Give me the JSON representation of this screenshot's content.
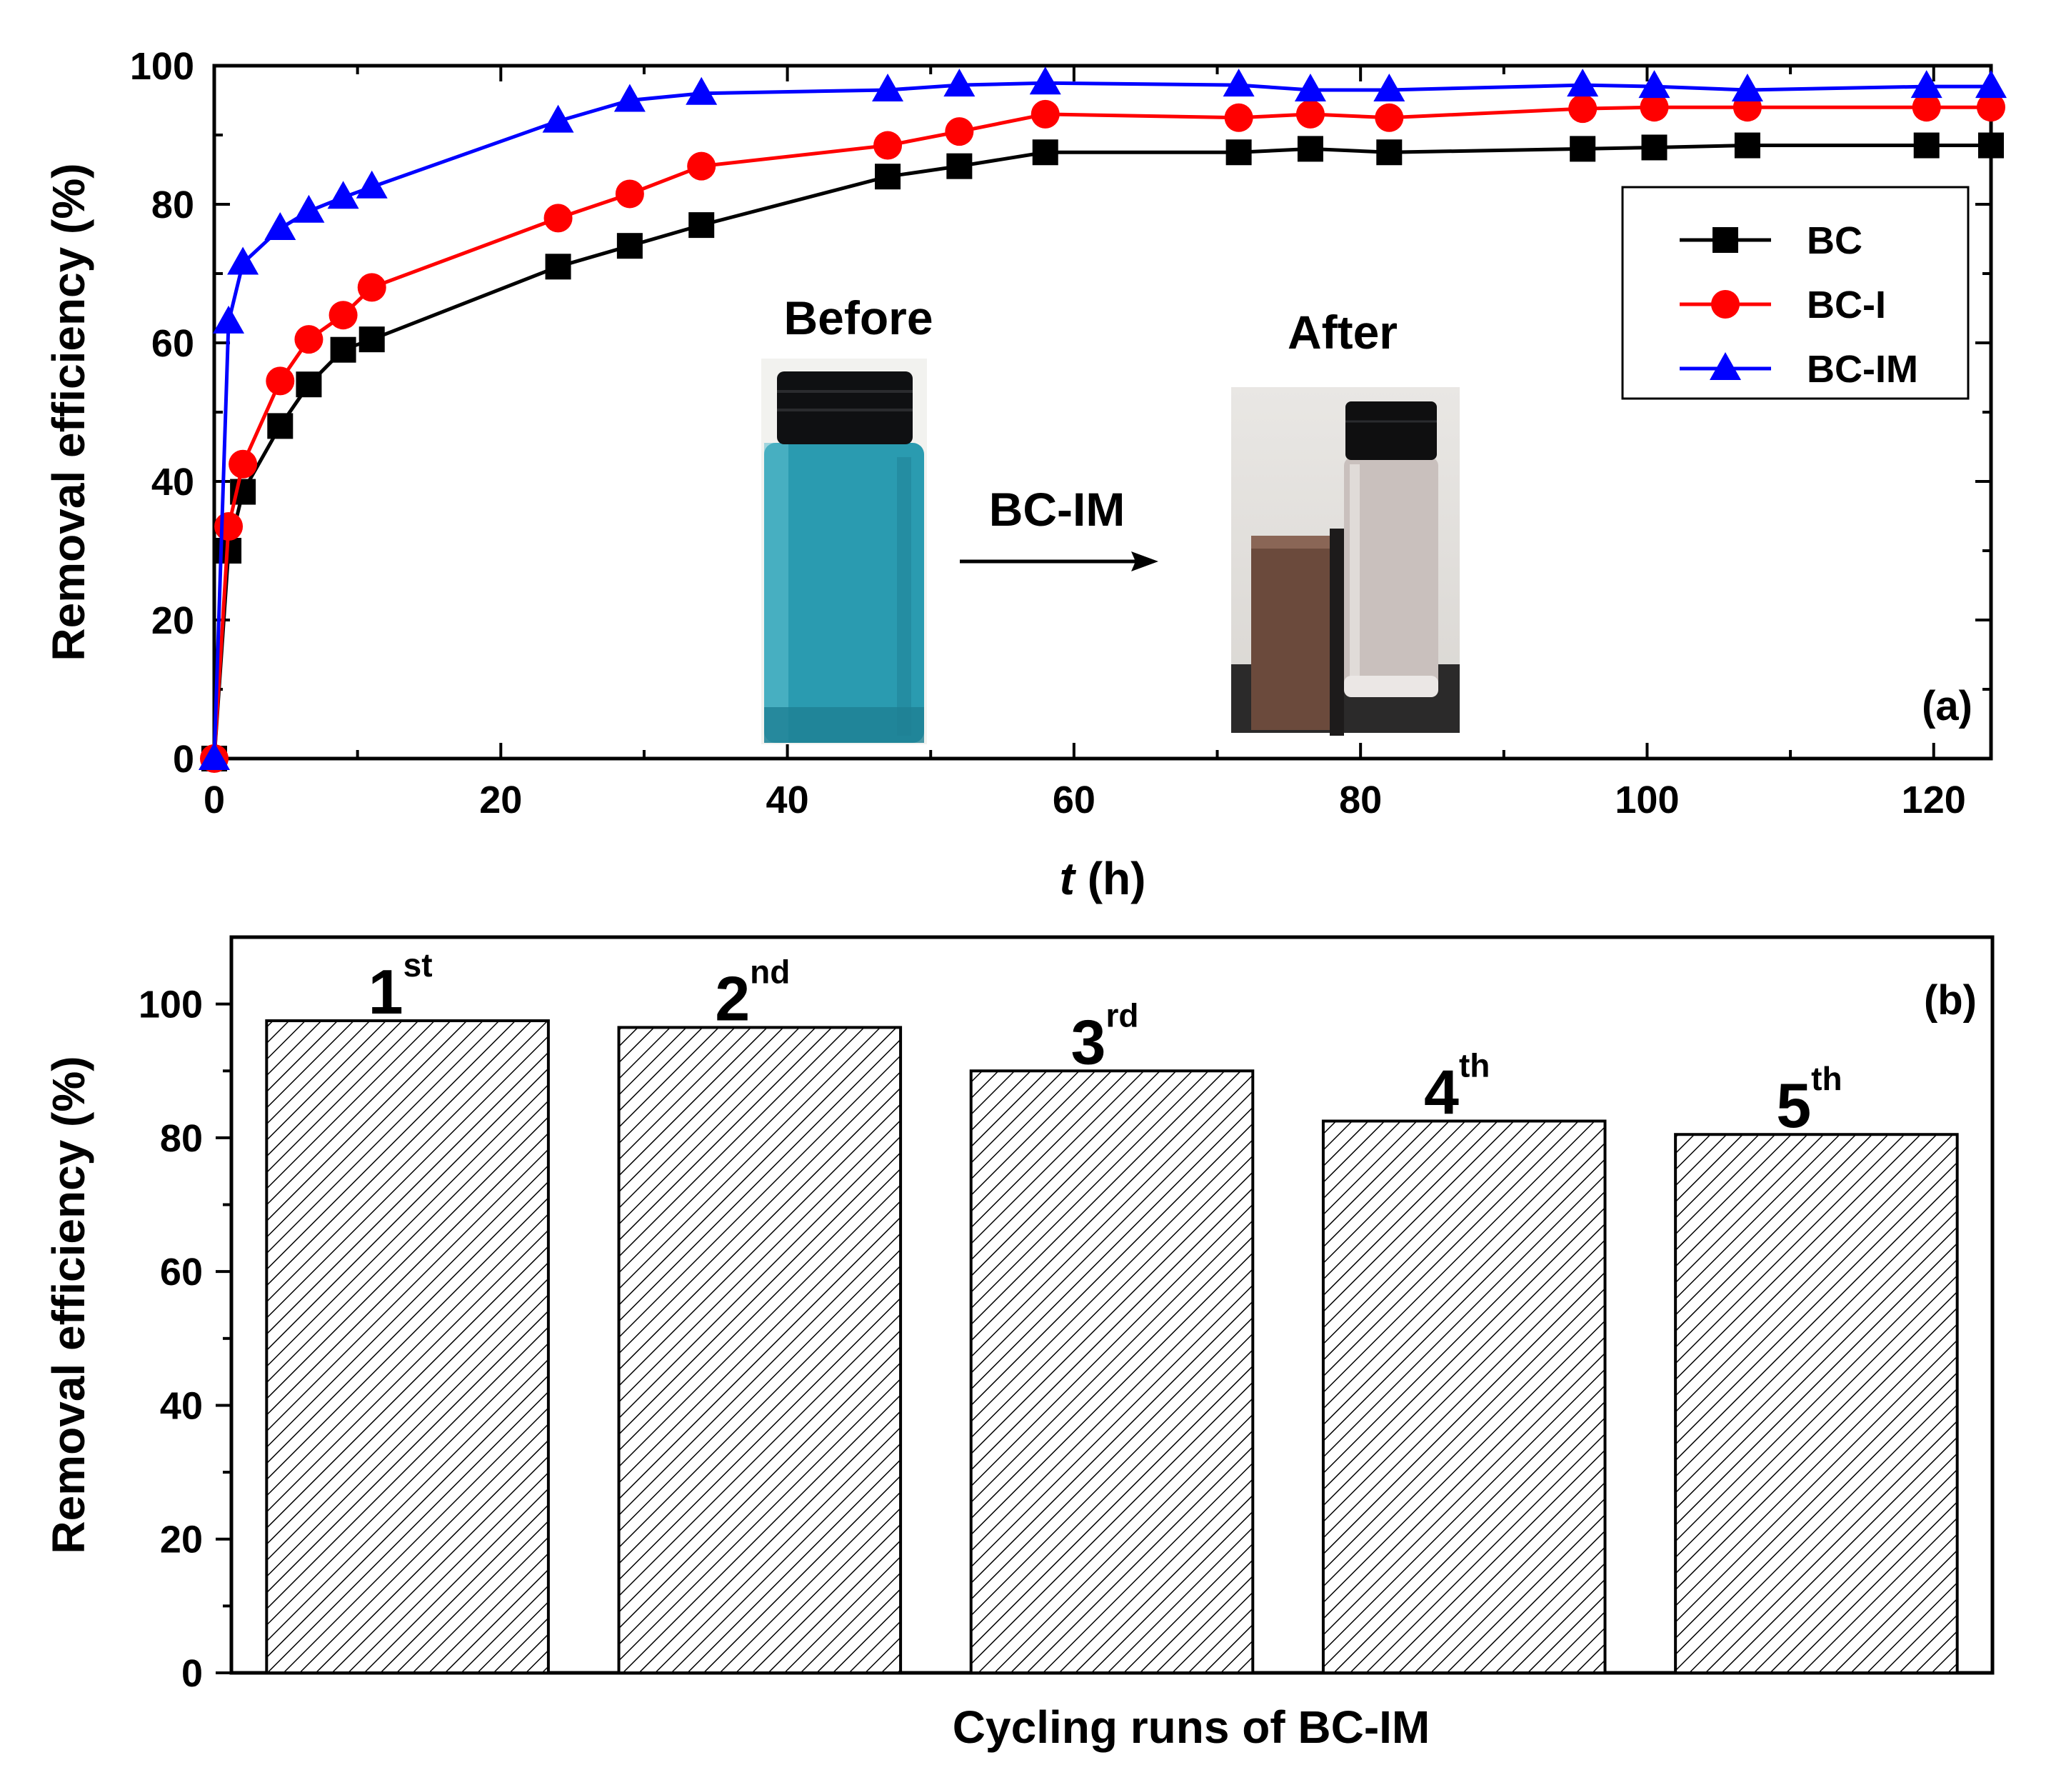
{
  "chart_data": [
    {
      "panel": "(a)",
      "type": "line",
      "title": "",
      "xlabel_italic": "t",
      "xlabel_unit": " (h)",
      "ylabel": "Removal efficiency (%)",
      "xlim": [
        0,
        124
      ],
      "ylim": [
        0,
        100
      ],
      "xticks": [
        0,
        20,
        40,
        60,
        80,
        100,
        120
      ],
      "yticks": [
        0,
        20,
        40,
        60,
        80,
        100
      ],
      "legend_position": "top-right",
      "series": [
        {
          "name": "BC",
          "color": "#000000",
          "marker": "square",
          "x": [
            0,
            1,
            2,
            4.6,
            6.6,
            9,
            11,
            24,
            29,
            34,
            47,
            52,
            58,
            71.5,
            76.5,
            82,
            95.5,
            100.5,
            107,
            119.5,
            124
          ],
          "y": [
            0,
            30,
            38.5,
            48,
            54,
            59,
            60.5,
            71,
            74,
            77,
            84,
            85.5,
            87.5,
            87.5,
            88,
            87.5,
            88,
            88.2,
            88.5,
            88.5,
            88.5
          ]
        },
        {
          "name": "BC-I",
          "color": "#ff0000",
          "marker": "circle",
          "x": [
            0,
            1,
            2,
            4.6,
            6.6,
            9,
            11,
            24,
            29,
            34,
            47,
            52,
            58,
            71.5,
            76.5,
            82,
            95.5,
            100.5,
            107,
            119.5,
            124
          ],
          "y": [
            0,
            33.5,
            42.5,
            54.5,
            60.5,
            64,
            68,
            78,
            81.5,
            85.5,
            88.5,
            90.5,
            93,
            92.5,
            93,
            92.5,
            93.8,
            94,
            94,
            94,
            94
          ]
        },
        {
          "name": "BC-IM",
          "color": "#0000ff",
          "marker": "triangle",
          "x": [
            0,
            1,
            2,
            4.6,
            6.6,
            9,
            11,
            24,
            29,
            34,
            47,
            52,
            58,
            71.5,
            76.5,
            82,
            95.5,
            100.5,
            107,
            119.5,
            124
          ],
          "y": [
            0,
            63,
            71.5,
            76.5,
            79,
            81,
            82.5,
            92,
            95,
            96,
            96.5,
            97.2,
            97.5,
            97.2,
            96.5,
            96.5,
            97.2,
            97,
            96.5,
            97,
            97
          ]
        }
      ],
      "inset": {
        "before_label": "Before",
        "after_label": "After",
        "arrow_label": "BC-IM",
        "before_liquid_color": "#2a9bb0",
        "after_liquid_color": "#c9c0bd"
      }
    },
    {
      "panel": "(b)",
      "type": "bar",
      "title": "",
      "xlabel": "Cycling runs of BC-IM",
      "ylabel": "Removal efficiency (%)",
      "ylim": [
        0,
        110
      ],
      "yticks": [
        0,
        20,
        40,
        60,
        80,
        100
      ],
      "categories": [
        "1st",
        "2nd",
        "3rd",
        "4th",
        "5th"
      ],
      "category_labels": [
        {
          "num": "1",
          "sup": "st"
        },
        {
          "num": "2",
          "sup": "nd"
        },
        {
          "num": "3",
          "sup": "rd"
        },
        {
          "num": "4",
          "sup": "th"
        },
        {
          "num": "5",
          "sup": "th"
        }
      ],
      "values": [
        97.5,
        96.5,
        90,
        82.5,
        80.5
      ],
      "fill": "hatched"
    }
  ]
}
